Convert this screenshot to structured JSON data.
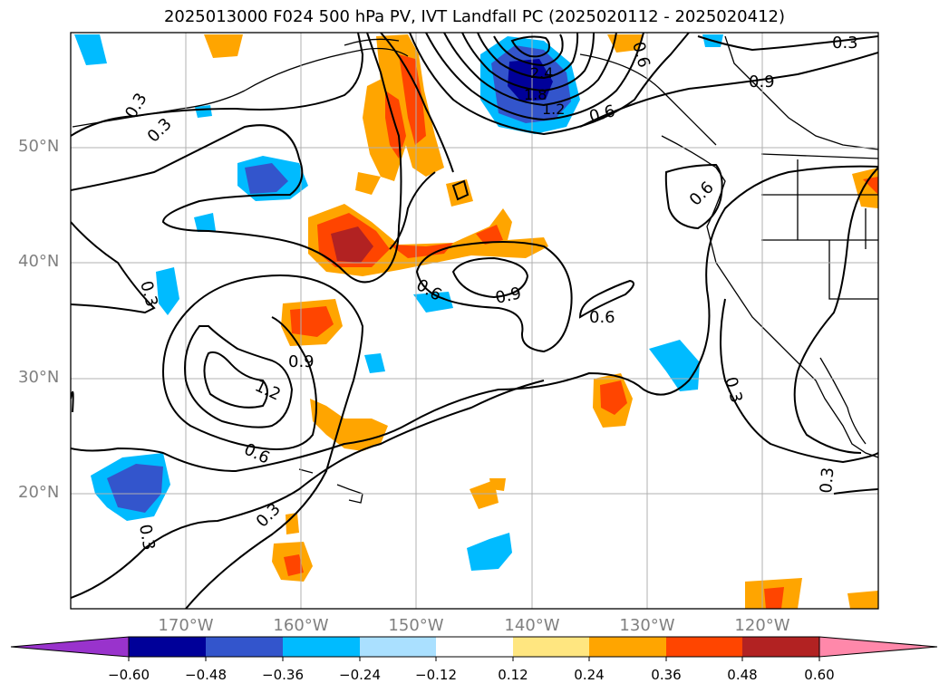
{
  "title": "2025013000 F024 500 hPa PV, IVT Landfall PC (2025020112 - 2025020412)",
  "lat_labels": [
    "50°N",
    "40°N",
    "30°N",
    "20°N"
  ],
  "lon_labels": [
    "170°W",
    "160°W",
    "150°W",
    "140°W",
    "130°W",
    "120°W"
  ],
  "contour_labels": [
    "0.3",
    "0.3",
    "0.3",
    "0.3",
    "0.3",
    "0.3",
    "0.3",
    "0.6",
    "0.6",
    "0.6",
    "0.6",
    "0.6",
    "0.9",
    "0.9",
    "0.9",
    "1.2",
    "0.6",
    "2.4",
    "1.8",
    "1.2"
  ],
  "colorbar": {
    "ticks": [
      "−0.60",
      "−0.48",
      "−0.36",
      "−0.24",
      "−0.12",
      "0.12",
      "0.24",
      "0.36",
      "0.48",
      "0.60"
    ],
    "colors": [
      "#9933cc",
      "#000099",
      "#3355cc",
      "#00bbff",
      "#aae0ff",
      "#ffffff",
      "#ffe680",
      "#ffa500",
      "#ff4500",
      "#b22222",
      "#ff88aa"
    ]
  }
}
